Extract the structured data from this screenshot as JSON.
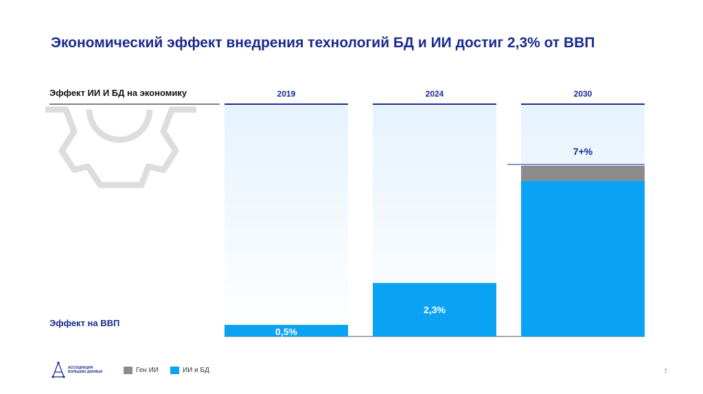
{
  "title": "Экономический эффект внедрения технологий БД и ИИ достиг 2,3% от ВВП",
  "row_label": "Эффект ИИ И БД на экономику",
  "gdp_label": "Эффект на ВВП",
  "legend": [
    {
      "label": "Ген ИИ",
      "color": "#8c8c8c"
    },
    {
      "label": "ИИ и БД",
      "color": "#0aa2f3"
    }
  ],
  "logo": {
    "line1": "Ассоциация",
    "line2": "больших данных"
  },
  "page_number": "7",
  "chart_data": {
    "type": "bar",
    "stacked": true,
    "categories": [
      "2019",
      "2024",
      "2030"
    ],
    "series": [
      {
        "name": "ИИ и БД",
        "color": "#0aa2f3",
        "values": [
          0.5,
          2.3,
          6.7
        ]
      },
      {
        "name": "Ген ИИ",
        "color": "#8c8c8c",
        "values": [
          0,
          0,
          0.65
        ]
      }
    ],
    "data_labels": [
      "0,5%",
      "2,3%",
      "7+%"
    ],
    "ylim": [
      0,
      10
    ]
  }
}
